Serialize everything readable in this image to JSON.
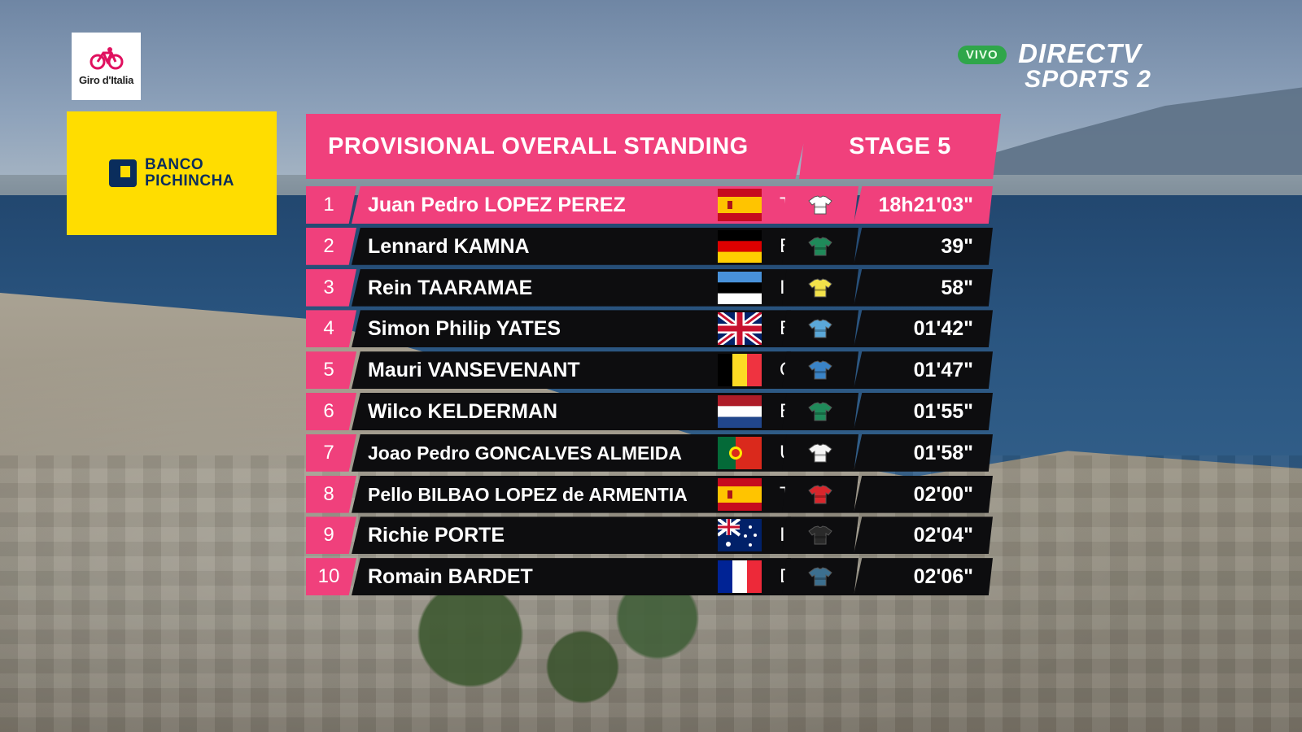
{
  "logos": {
    "race_logo_text": "Giro d'Italia",
    "sponsor_line1": "BANCO",
    "sponsor_line2": "PICHINCHA",
    "live_badge": "VIVO",
    "broadcaster_line1": "DIRECTV",
    "broadcaster_line2": "SPORTS 2"
  },
  "standings": {
    "title": "PROVISIONAL OVERALL STANDING",
    "stage": "STAGE 5",
    "rows": [
      {
        "pos": "1",
        "name": "Juan Pedro LOPEZ PEREZ",
        "flag": "spain-flag",
        "team": "TFS",
        "jersey": "jersey-icon",
        "jersey_color": "#ffffff",
        "time": "18h21'03\""
      },
      {
        "pos": "2",
        "name": "Lennard KAMNA",
        "flag": "germany-flag",
        "team": "BOH",
        "jersey": "jersey-icon",
        "jersey_color": "#1f8a5a",
        "time": "39\""
      },
      {
        "pos": "3",
        "name": "Rein TAARAMAE",
        "flag": "estonia-flag",
        "team": "IWG",
        "jersey": "jersey-icon",
        "jersey_color": "#f2e24a",
        "time": "58\""
      },
      {
        "pos": "4",
        "name": "Simon Philip YATES",
        "flag": "uk-flag",
        "team": "BEX",
        "jersey": "jersey-icon",
        "jersey_color": "#5aa7d8",
        "time": "01'42\""
      },
      {
        "pos": "5",
        "name": "Mauri VANSEVENANT",
        "flag": "belgium-flag",
        "team": "QST",
        "jersey": "jersey-icon",
        "jersey_color": "#3a83c6",
        "time": "01'47\""
      },
      {
        "pos": "6",
        "name": "Wilco KELDERMAN",
        "flag": "netherlands-flag",
        "team": "BOH",
        "jersey": "jersey-icon",
        "jersey_color": "#1f8a5a",
        "time": "01'55\""
      },
      {
        "pos": "7",
        "name": "Joao Pedro GONCALVES ALMEIDA",
        "flag": "portugal-flag",
        "team": "UAD",
        "jersey": "jersey-icon",
        "jersey_color": "#f4f4f4",
        "time": "01'58\""
      },
      {
        "pos": "8",
        "name": "Pello BILBAO LOPEZ de ARMENTIA",
        "flag": "spain-flag",
        "team": "TBV",
        "jersey": "jersey-icon",
        "jersey_color": "#d8262c",
        "time": "02'00\""
      },
      {
        "pos": "9",
        "name": "Richie PORTE",
        "flag": "australia-flag",
        "team": "IGD",
        "jersey": "jersey-icon",
        "jersey_color": "#2a2a2a",
        "time": "02'04\""
      },
      {
        "pos": "10",
        "name": "Romain BARDET",
        "flag": "france-flag",
        "team": "DSM",
        "jersey": "jersey-icon",
        "jersey_color": "#3c6f8f",
        "time": "02'06\""
      }
    ]
  },
  "colors": {
    "accent_pink": "#f0407c",
    "row_black": "#0d0d0f",
    "sponsor_yellow": "#ffdd00",
    "sponsor_navy": "#0a2d5c",
    "live_green": "#2fa64a"
  }
}
